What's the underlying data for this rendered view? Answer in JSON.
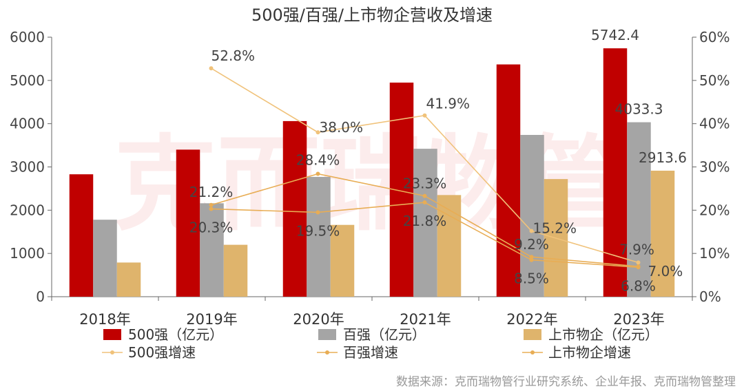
{
  "chart_data": {
    "type": "bar",
    "title": "500强/百强/上市物企营收及增速",
    "categories": [
      "2018年",
      "2019年",
      "2020年",
      "2021年",
      "2022年",
      "2023年"
    ],
    "series": [
      {
        "name": "500强（亿元）",
        "axis": "left",
        "kind": "bar",
        "color": "#c00000",
        "values": [
          2830,
          3400,
          4060,
          4950,
          5370,
          5742.4
        ]
      },
      {
        "name": "百强（亿元）",
        "axis": "left",
        "kind": "bar",
        "color": "#a5a5a5",
        "values": [
          1780,
          2160,
          2770,
          3420,
          3740,
          4033.3
        ]
      },
      {
        "name": "上市物企（亿元）",
        "axis": "left",
        "kind": "bar",
        "color": "#dfb46c",
        "values": [
          790,
          1200,
          1660,
          2350,
          2720,
          2913.6
        ]
      },
      {
        "name": "500强增速",
        "axis": "right",
        "kind": "line",
        "color": "#f0c27a",
        "values": [
          null,
          52.8,
          38.0,
          41.9,
          15.2,
          7.9
        ]
      },
      {
        "name": "百强增速",
        "axis": "right",
        "kind": "line",
        "color": "#e8ad55",
        "values": [
          null,
          21.2,
          28.4,
          23.3,
          9.2,
          7.0
        ]
      },
      {
        "name": "上市物企增速",
        "axis": "right",
        "kind": "line",
        "color": "#e8ad55",
        "values": [
          null,
          20.3,
          19.5,
          21.8,
          8.5,
          6.8
        ]
      }
    ],
    "bar_labels": [
      {
        "series": 0,
        "index": 5,
        "text": "5742.4"
      },
      {
        "series": 1,
        "index": 5,
        "text": "4033.3"
      },
      {
        "series": 2,
        "index": 5,
        "text": "2913.6"
      }
    ],
    "line_labels": [
      {
        "series": 3,
        "index": 1,
        "text": "52.8%"
      },
      {
        "series": 3,
        "index": 2,
        "text": "38.0%"
      },
      {
        "series": 3,
        "index": 3,
        "text": "41.9%"
      },
      {
        "series": 3,
        "index": 4,
        "text": "15.2%"
      },
      {
        "series": 3,
        "index": 5,
        "text": "7.9%"
      },
      {
        "series": 4,
        "index": 1,
        "text": "21.2%"
      },
      {
        "series": 4,
        "index": 2,
        "text": "28.4%"
      },
      {
        "series": 4,
        "index": 3,
        "text": "23.3%"
      },
      {
        "series": 4,
        "index": 4,
        "text": "9.2%"
      },
      {
        "series": 4,
        "index": 5,
        "text": "7.0%"
      },
      {
        "series": 5,
        "index": 1,
        "text": "20.3%"
      },
      {
        "series": 5,
        "index": 2,
        "text": "19.5%"
      },
      {
        "series": 5,
        "index": 3,
        "text": "21.8%"
      },
      {
        "series": 5,
        "index": 4,
        "text": "8.5%"
      },
      {
        "series": 5,
        "index": 5,
        "text": "6.8%"
      }
    ],
    "y_left": {
      "min": 0,
      "max": 6000,
      "ticks": [
        "0",
        "1000",
        "2000",
        "3000",
        "4000",
        "5000",
        "6000"
      ]
    },
    "y_right": {
      "min": 0,
      "max": 60,
      "ticks": [
        "0%",
        "10%",
        "20%",
        "30%",
        "40%",
        "50%",
        "60%"
      ]
    },
    "legend_position": "bottom",
    "grid": false
  },
  "watermark": "克而瑞物管",
  "source": "数据来源：克而瑞物管行业研究系统、企业年报、克而瑞物管整理"
}
